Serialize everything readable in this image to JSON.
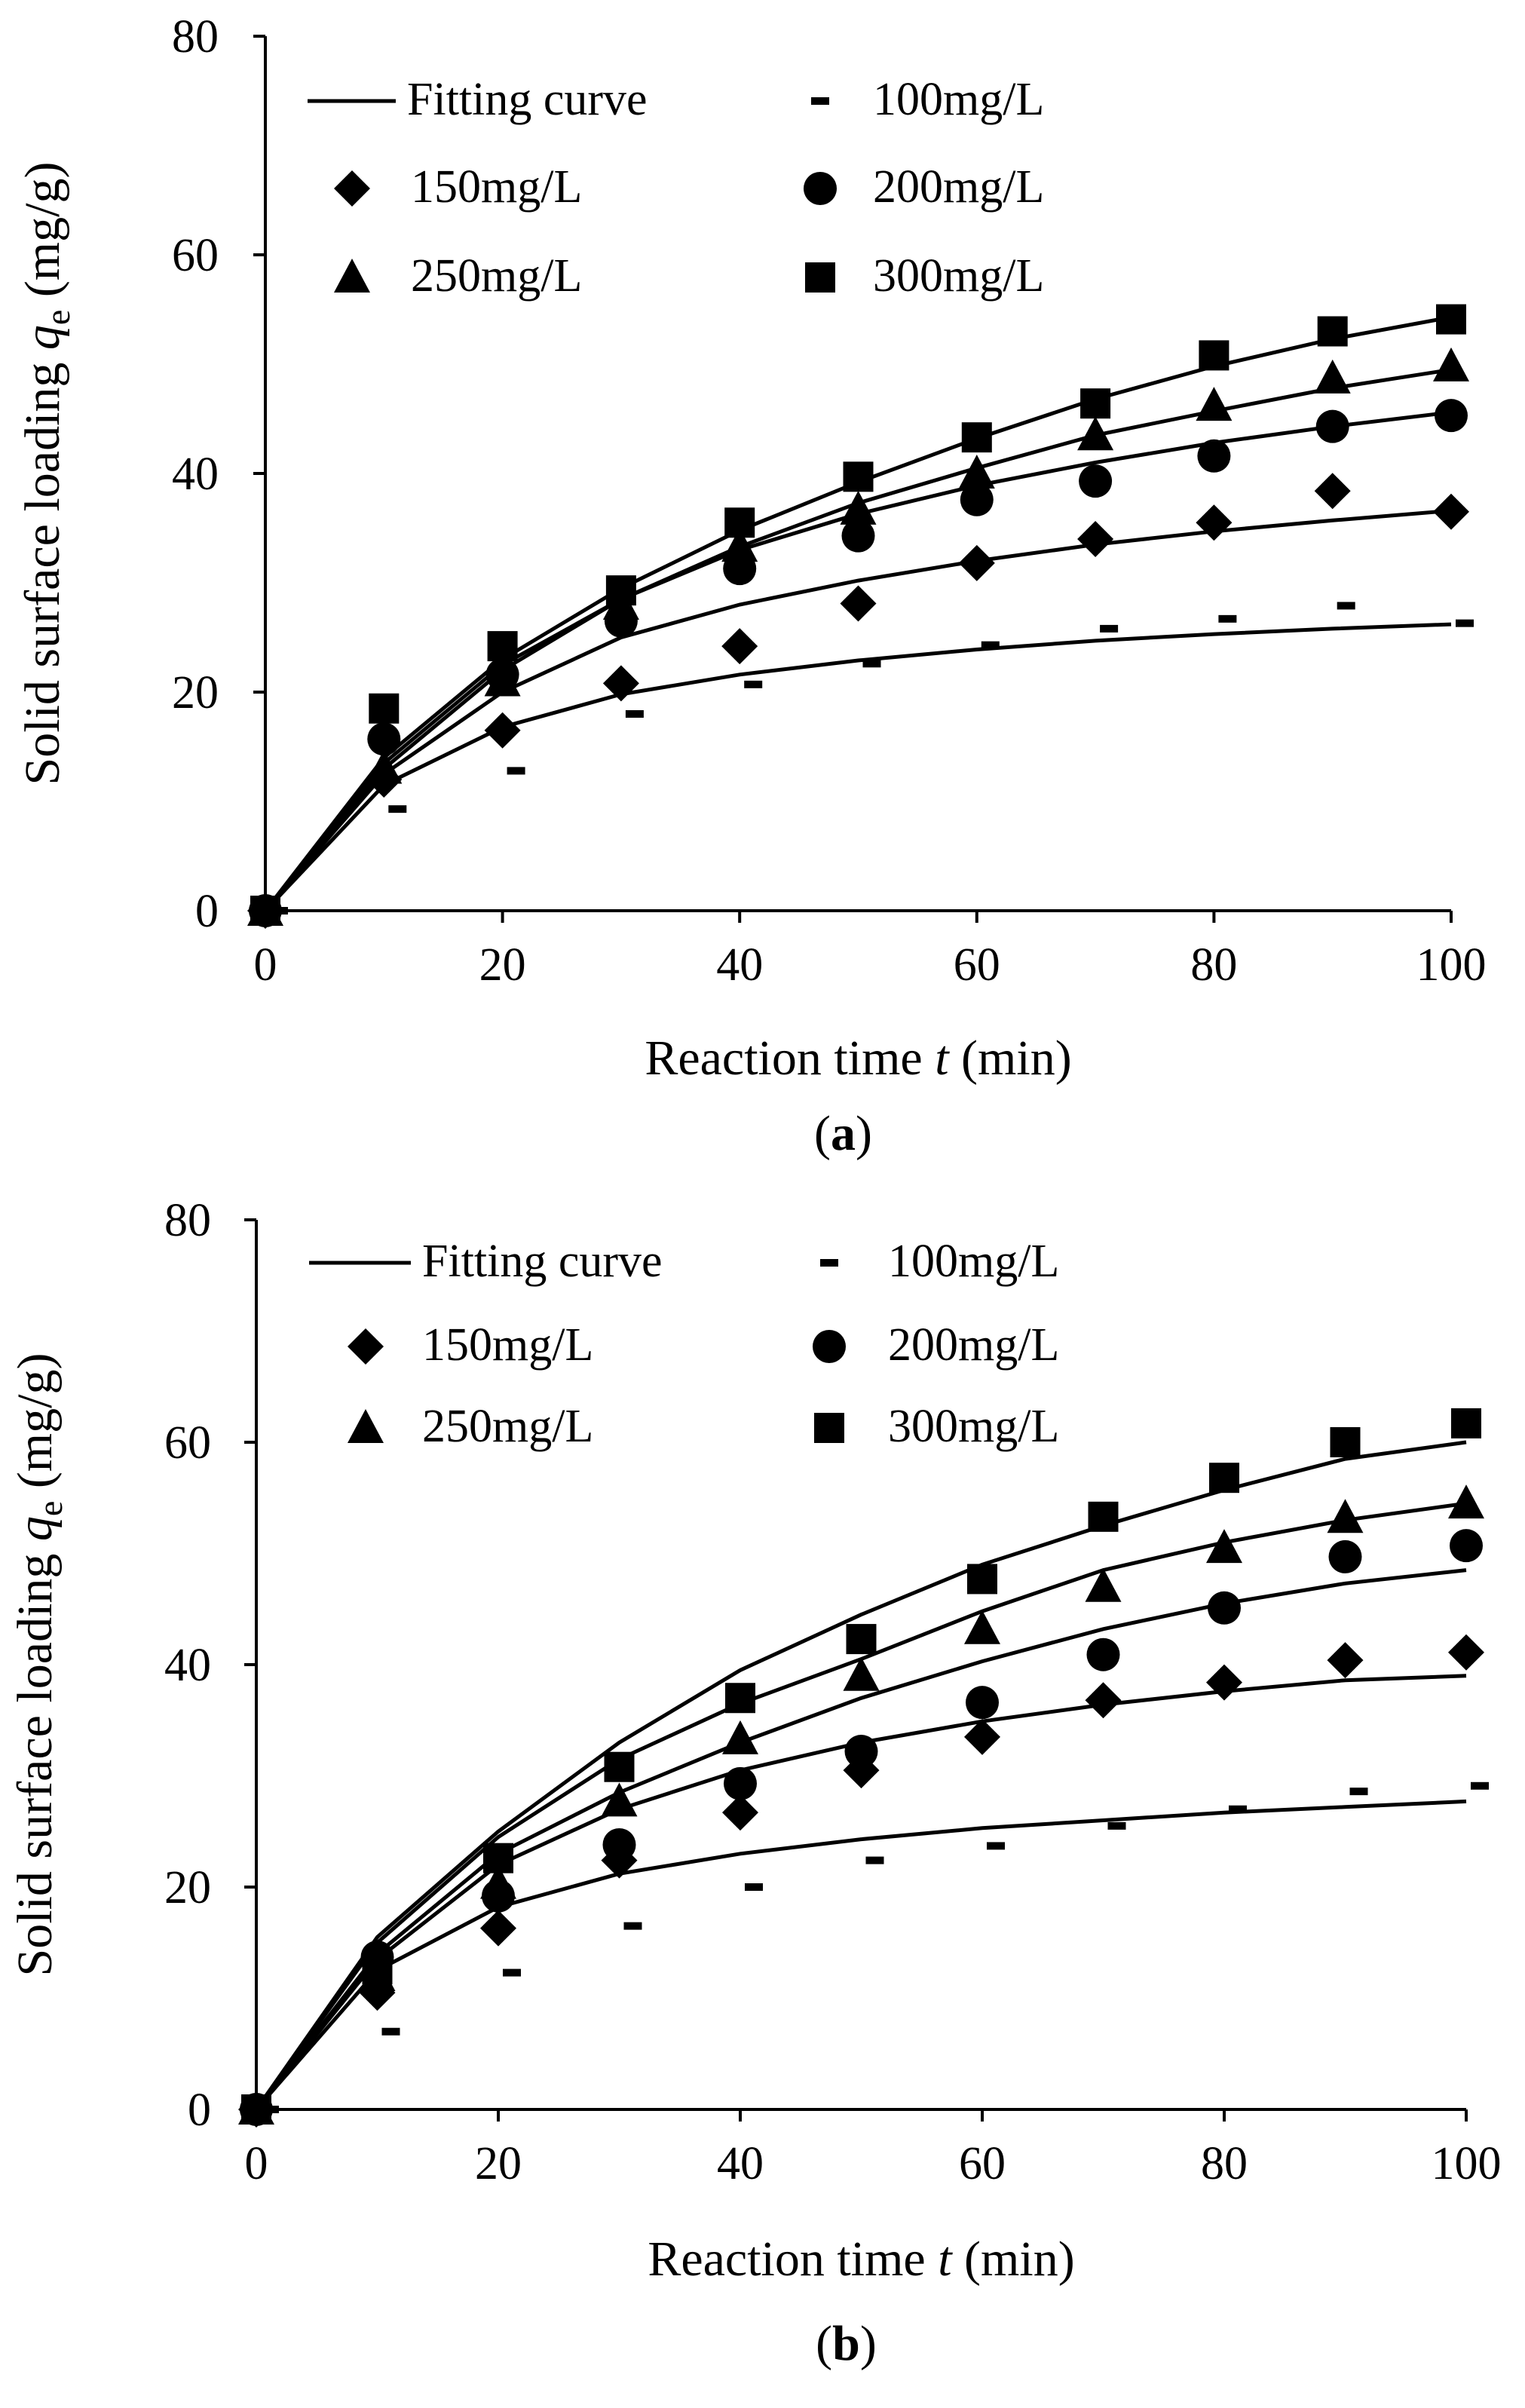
{
  "figure": {
    "panels": [
      {
        "caption_letter": "a",
        "chart_data": {
          "type": "scatter",
          "title": "",
          "xlabel": "Reaction time t (min)",
          "ylabel": "Solid surface loading qe (mg/g)",
          "xlabel_parts": {
            "pre": "Reaction time ",
            "var": "t",
            "post": " (min)"
          },
          "ylabel_parts": {
            "pre": "Solid surface loading ",
            "var": "q",
            "sub": "e",
            "post": " (mg/g)"
          },
          "xlim": [
            0,
            100
          ],
          "ylim": [
            0,
            80
          ],
          "xticks": [
            0,
            20,
            40,
            60,
            80,
            100
          ],
          "yticks": [
            0,
            20,
            40,
            60,
            80
          ],
          "legend": [
            {
              "label": "Fitting curve",
              "marker": "line"
            },
            {
              "label": "100mg/L",
              "marker": "dash"
            },
            {
              "label": "150mg/L",
              "marker": "diamond"
            },
            {
              "label": "200mg/L",
              "marker": "circle"
            },
            {
              "label": "250mg/L",
              "marker": "triangle"
            },
            {
              "label": "300mg/L",
              "marker": "square"
            }
          ],
          "x": [
            0,
            10,
            20,
            30,
            40,
            50,
            60,
            70,
            80,
            90,
            100
          ],
          "series": [
            {
              "name": "100mg/L",
              "marker": "dash",
              "values": [
                0,
                9.3,
                12.8,
                18.0,
                20.7,
                22.6,
                24.3,
                25.8,
                26.7,
                27.9,
                26.3
              ]
            },
            {
              "name": "150mg/L",
              "marker": "diamond",
              "values": [
                0,
                12.0,
                16.5,
                20.8,
                24.2,
                28.1,
                31.8,
                34.0,
                35.5,
                38.4,
                36.5
              ]
            },
            {
              "name": "200mg/L",
              "marker": "circle",
              "values": [
                0,
                15.7,
                21.6,
                26.5,
                31.3,
                34.3,
                37.6,
                39.3,
                41.6,
                44.3,
                45.3
              ]
            },
            {
              "name": "250mg/L",
              "marker": "triangle",
              "values": [
                0,
                13.0,
                21.0,
                28.0,
                33.3,
                36.7,
                40.0,
                43.5,
                46.2,
                48.7,
                49.8
              ]
            },
            {
              "name": "300mg/L",
              "marker": "square",
              "values": [
                0,
                18.5,
                24.2,
                29.3,
                35.5,
                39.7,
                43.3,
                46.4,
                50.8,
                53.0,
                54.1
              ]
            }
          ],
          "fits": [
            {
              "name": "Fitting curve 100mg/L",
              "values": [
                0,
                11.5,
                16.8,
                19.8,
                21.6,
                22.9,
                23.9,
                24.7,
                25.3,
                25.8,
                26.2
              ]
            },
            {
              "name": "Fitting curve 150mg/L",
              "values": [
                0,
                12.5,
                20.0,
                25.0,
                28.0,
                30.2,
                32.0,
                33.5,
                34.7,
                35.7,
                36.6
              ]
            },
            {
              "name": "Fitting curve 200mg/L",
              "values": [
                0,
                13.5,
                22.5,
                28.5,
                33.0,
                36.3,
                38.9,
                41.0,
                42.8,
                44.3,
                45.6
              ]
            },
            {
              "name": "Fitting curve 250mg/L",
              "values": [
                0,
                13.0,
                22.0,
                28.5,
                33.3,
                37.3,
                40.5,
                43.5,
                45.7,
                47.8,
                49.5
              ]
            },
            {
              "name": "Fitting curve 300mg/L",
              "values": [
                0,
                14.0,
                23.0,
                29.5,
                34.8,
                39.2,
                43.2,
                46.8,
                49.8,
                52.3,
                54.3
              ]
            }
          ]
        }
      },
      {
        "caption_letter": "b",
        "chart_data": {
          "type": "scatter",
          "title": "",
          "xlabel": "Reaction time t (min)",
          "ylabel": "Solid surface loading qe (mg/g)",
          "xlabel_parts": {
            "pre": "Reaction time ",
            "var": "t",
            "post": " (min)"
          },
          "ylabel_parts": {
            "pre": "Solid surface loading ",
            "var": "q",
            "sub": "e",
            "post": " (mg/g)"
          },
          "xlim": [
            0,
            100
          ],
          "ylim": [
            0,
            80
          ],
          "xticks": [
            0,
            20,
            40,
            60,
            80,
            100
          ],
          "yticks": [
            0,
            20,
            40,
            60,
            80
          ],
          "legend": [
            {
              "label": "Fitting curve",
              "marker": "line"
            },
            {
              "label": "100mg/L",
              "marker": "dash"
            },
            {
              "label": "150mg/L",
              "marker": "diamond"
            },
            {
              "label": "200mg/L",
              "marker": "circle"
            },
            {
              "label": "250mg/L",
              "marker": "triangle"
            },
            {
              "label": "300mg/L",
              "marker": "square"
            }
          ],
          "x": [
            0,
            10,
            20,
            30,
            40,
            50,
            60,
            70,
            80,
            90,
            100
          ],
          "series": [
            {
              "name": "100mg/L",
              "marker": "dash",
              "values": [
                0,
                7.0,
                12.3,
                16.5,
                20.0,
                22.4,
                23.7,
                25.5,
                27.0,
                28.6,
                29.1
              ]
            },
            {
              "name": "150mg/L",
              "marker": "diamond",
              "values": [
                0,
                10.5,
                16.3,
                22.4,
                26.7,
                30.5,
                33.5,
                36.8,
                38.4,
                40.4,
                41.1
              ]
            },
            {
              "name": "200mg/L",
              "marker": "circle",
              "values": [
                0,
                13.7,
                19.2,
                23.8,
                29.3,
                32.2,
                36.6,
                40.9,
                45.1,
                49.7,
                50.7
              ]
            },
            {
              "name": "250mg/L",
              "marker": "triangle",
              "values": [
                0,
                12.0,
                20.3,
                27.7,
                33.3,
                39.0,
                43.2,
                47.0,
                50.5,
                53.2,
                54.5
              ]
            },
            {
              "name": "300mg/L",
              "marker": "square",
              "values": [
                0,
                12.6,
                22.6,
                30.8,
                37.0,
                42.3,
                47.7,
                53.3,
                56.8,
                60.0,
                61.7
              ]
            }
          ],
          "fits": [
            {
              "name": "Fitting curve 100mg/L",
              "values": [
                0,
                12.5,
                18.2,
                21.2,
                23.0,
                24.3,
                25.3,
                26.0,
                26.7,
                27.2,
                27.7
              ]
            },
            {
              "name": "Fitting curve 150mg/L",
              "values": [
                0,
                13.5,
                22.0,
                27.0,
                30.5,
                33.0,
                34.9,
                36.4,
                37.6,
                38.6,
                39.0
              ]
            },
            {
              "name": "Fitting curve 200mg/L",
              "values": [
                0,
                14.0,
                23.0,
                28.5,
                33.0,
                37.0,
                40.3,
                43.2,
                45.5,
                47.3,
                48.5
              ]
            },
            {
              "name": "Fitting curve 250mg/L",
              "values": [
                0,
                15.0,
                24.5,
                31.5,
                36.5,
                40.5,
                44.8,
                48.5,
                51.0,
                53.0,
                54.5
              ]
            },
            {
              "name": "Fitting curve 300mg/L",
              "values": [
                0,
                15.5,
                25.0,
                33.0,
                39.5,
                44.5,
                49.0,
                52.5,
                55.7,
                58.5,
                60.0
              ]
            }
          ]
        }
      }
    ]
  }
}
